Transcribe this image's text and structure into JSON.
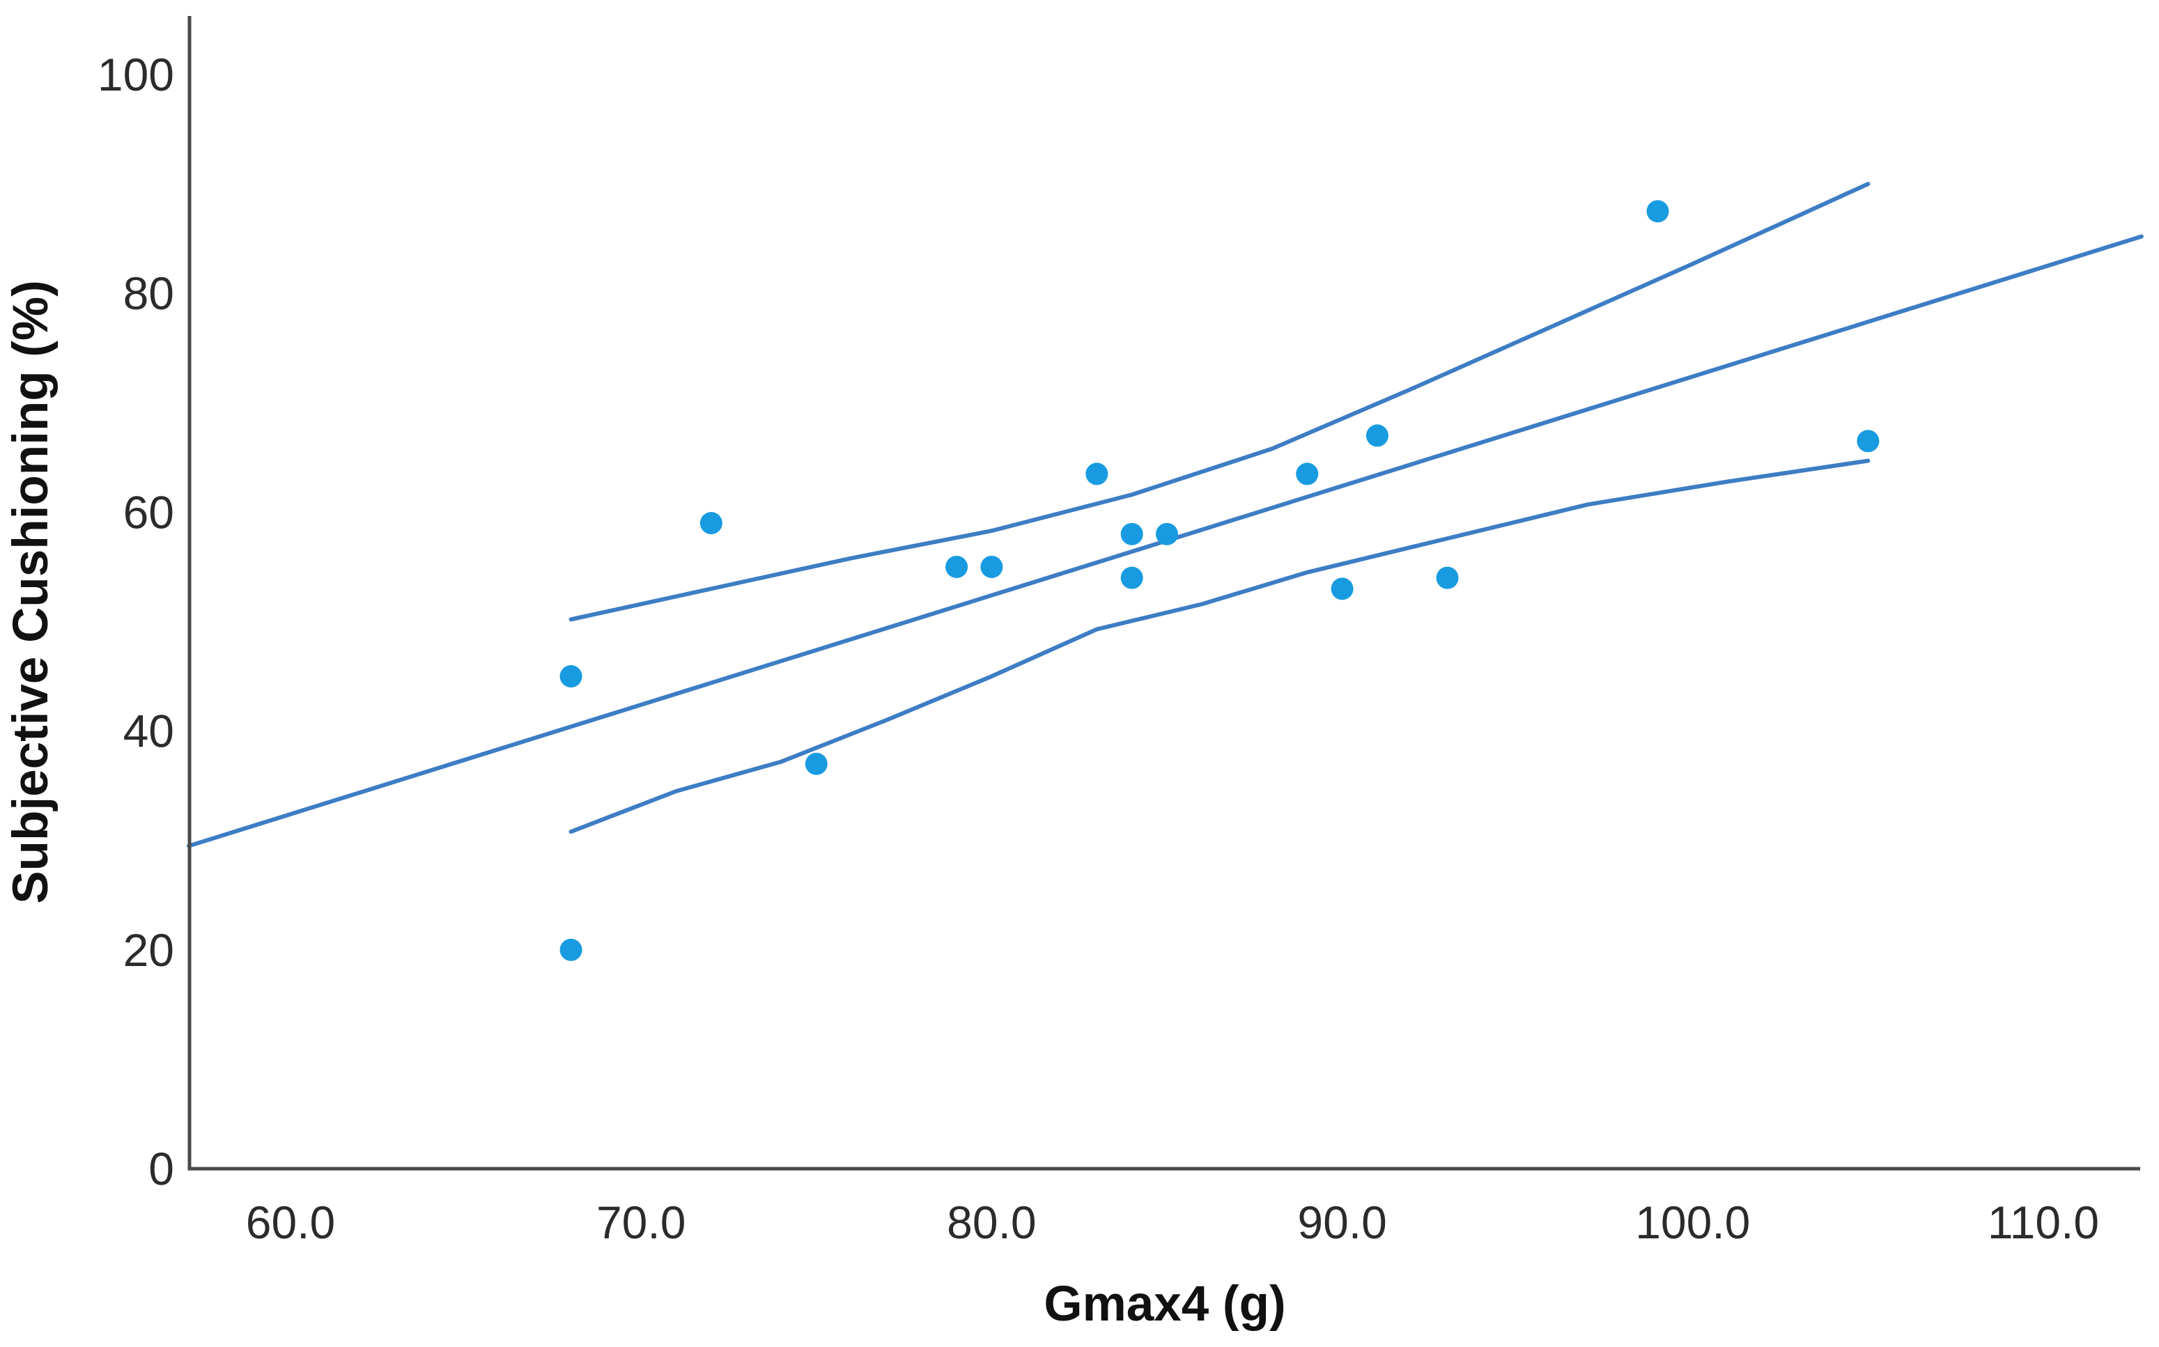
{
  "chart_data": {
    "type": "scatter",
    "title": "",
    "xlabel": "Gmax4 (g)",
    "ylabel": "Subjective Cushioning (%)",
    "x_ticks": [
      60,
      70,
      80,
      90,
      100,
      110
    ],
    "x_tick_labels": [
      "60.0",
      "70.0",
      "80.0",
      "90.0",
      "100.0",
      "110.0"
    ],
    "y_ticks": [
      0,
      20,
      40,
      60,
      80,
      100
    ],
    "y_tick_labels": [
      "0",
      "20",
      "40",
      "60",
      "80",
      "100"
    ],
    "xlim": [
      57.1,
      112.8
    ],
    "ylim": [
      0,
      105.3
    ],
    "grid": false,
    "legend": false,
    "points": [
      [
        68,
        45
      ],
      [
        68,
        20
      ],
      [
        72,
        59
      ],
      [
        75,
        37
      ],
      [
        79,
        55
      ],
      [
        80,
        55
      ],
      [
        83,
        63.5
      ],
      [
        84,
        58
      ],
      [
        85,
        58
      ],
      [
        84,
        54
      ],
      [
        89,
        63.5
      ],
      [
        90,
        53
      ],
      [
        91,
        67
      ],
      [
        93,
        54
      ],
      [
        99,
        87.5
      ],
      [
        105,
        66.5
      ]
    ],
    "fit_line": {
      "slope": 1.0,
      "intercept": -27.6,
      "x_start": 57.1,
      "x_end": 112.8
    },
    "ci_upper": [
      [
        68,
        50.2
      ],
      [
        72,
        53.0
      ],
      [
        76,
        55.8
      ],
      [
        80,
        58.3
      ],
      [
        84,
        61.6
      ],
      [
        88,
        65.8
      ],
      [
        92,
        71.3
      ],
      [
        96,
        77.0
      ],
      [
        100,
        82.7
      ],
      [
        105,
        90.0
      ]
    ],
    "ci_lower": [
      [
        68,
        30.8
      ],
      [
        71,
        34.5
      ],
      [
        74,
        37.2
      ],
      [
        77,
        41.0
      ],
      [
        80,
        45.0
      ],
      [
        83,
        49.3
      ],
      [
        86,
        51.6
      ],
      [
        89,
        54.5
      ],
      [
        93,
        57.6
      ],
      [
        97,
        60.7
      ],
      [
        101,
        62.8
      ],
      [
        105,
        64.7
      ]
    ],
    "colors": {
      "marker": "#189be1",
      "line": "#3d7dc4",
      "axis": "#4a4a4a",
      "text": "#2b2b2b"
    }
  }
}
